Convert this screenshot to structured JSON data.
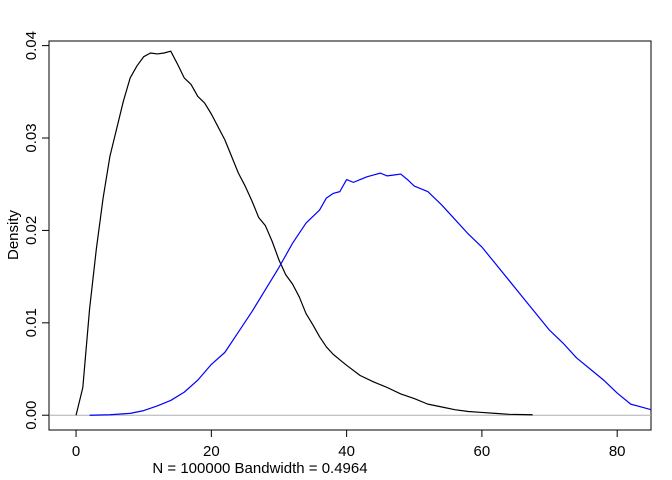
{
  "chart_data": {
    "type": "line",
    "title": "",
    "xlabel": "N = 100000   Bandwidth = 0.4964",
    "ylabel": "Density",
    "xlim": [
      -4,
      85
    ],
    "ylim": [
      -0.0016,
      0.0405
    ],
    "xticks": [
      0,
      20,
      40,
      60,
      80
    ],
    "yticks": [
      0.0,
      0.01,
      0.02,
      0.03,
      0.04
    ],
    "xtick_labels": [
      "0",
      "20",
      "40",
      "60",
      "80"
    ],
    "ytick_labels": [
      "0.00",
      "0.01",
      "0.02",
      "0.03",
      "0.04"
    ],
    "grid": false,
    "baseline": 0,
    "series": [
      {
        "color": "#000000",
        "x": [
          0,
          1,
          2,
          3,
          4,
          5,
          6,
          7,
          8,
          9,
          10,
          11,
          12,
          13,
          14,
          15,
          16,
          17,
          18,
          19,
          20,
          21,
          22,
          23,
          24,
          25,
          26,
          27,
          28,
          29,
          30,
          31,
          32,
          33,
          34,
          35,
          36,
          37,
          38,
          39,
          40,
          42,
          44,
          46,
          48,
          50,
          52,
          54,
          56,
          58,
          60,
          62,
          64,
          67.5
        ],
        "y": [
          0.0,
          0.003,
          0.0115,
          0.018,
          0.0235,
          0.028,
          0.031,
          0.034,
          0.0365,
          0.0378,
          0.0388,
          0.0392,
          0.0391,
          0.0392,
          0.0394,
          0.038,
          0.0365,
          0.0358,
          0.0345,
          0.0338,
          0.0326,
          0.0312,
          0.0298,
          0.028,
          0.0262,
          0.0248,
          0.0232,
          0.0214,
          0.0205,
          0.0188,
          0.0168,
          0.0152,
          0.0142,
          0.0128,
          0.011,
          0.0098,
          0.0085,
          0.0074,
          0.0066,
          0.006,
          0.0054,
          0.0043,
          0.0036,
          0.003,
          0.0023,
          0.0018,
          0.0012,
          0.0009,
          0.0006,
          0.0004,
          0.0003,
          0.0002,
          0.0001,
          5e-05
        ]
      },
      {
        "color": "#0000ff",
        "x": [
          2,
          5,
          8,
          10,
          12,
          14,
          16,
          18,
          20,
          22,
          24,
          26,
          28,
          30,
          32,
          34,
          36,
          37,
          38,
          39,
          40,
          41,
          42,
          43,
          44,
          45,
          46,
          47,
          48,
          49,
          50,
          52,
          54,
          56,
          58,
          60,
          62,
          64,
          66,
          68,
          70,
          72,
          74,
          76,
          78,
          80,
          82,
          85
        ],
        "y": [
          0.0,
          5e-05,
          0.0002,
          0.0005,
          0.001,
          0.0016,
          0.0025,
          0.0038,
          0.0055,
          0.0068,
          0.009,
          0.0112,
          0.0136,
          0.016,
          0.0186,
          0.0208,
          0.0222,
          0.0235,
          0.024,
          0.0242,
          0.0255,
          0.0252,
          0.0255,
          0.0258,
          0.026,
          0.0262,
          0.0259,
          0.026,
          0.0261,
          0.0255,
          0.0248,
          0.0242,
          0.0228,
          0.0212,
          0.0196,
          0.0182,
          0.0164,
          0.0146,
          0.0128,
          0.011,
          0.0092,
          0.0078,
          0.0062,
          0.005,
          0.0038,
          0.0024,
          0.0012,
          0.0006
        ]
      }
    ]
  }
}
